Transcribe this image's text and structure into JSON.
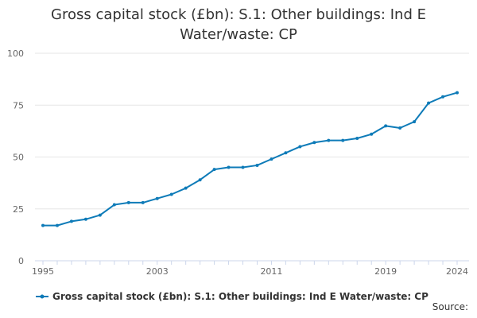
{
  "chart_data": {
    "type": "line",
    "title_line1": "Gross capital stock (£bn): S.1: Other buildings: Ind E",
    "title_line2": "Water/waste: CP",
    "xlabel": "",
    "ylabel": "",
    "x": [
      1995,
      1996,
      1997,
      1998,
      1999,
      2000,
      2001,
      2002,
      2003,
      2004,
      2005,
      2006,
      2007,
      2008,
      2009,
      2010,
      2011,
      2012,
      2013,
      2014,
      2015,
      2016,
      2017,
      2018,
      2019,
      2020,
      2021,
      2022,
      2023,
      2024
    ],
    "series": [
      {
        "name": "Gross capital stock (£bn): S.1: Other buildings: Ind E Water/waste: CP",
        "color": "#0e7bb8",
        "values": [
          17,
          17,
          19,
          20,
          22,
          27,
          28,
          28,
          30,
          32,
          35,
          39,
          44,
          45,
          45,
          46,
          49,
          52,
          55,
          57,
          58,
          58,
          59,
          61,
          65,
          64,
          67,
          76,
          79,
          81
        ]
      }
    ],
    "xlim": [
      1995,
      2024
    ],
    "ylim": [
      0,
      100
    ],
    "x_ticks": [
      "1995",
      "2003",
      "2011",
      "2019",
      "2024"
    ],
    "y_ticks": [
      "0",
      "25",
      "50",
      "75",
      "100"
    ],
    "grid": "horizontal",
    "legend_position": "bottom-center"
  },
  "footer": {
    "source_label": "Source:"
  }
}
